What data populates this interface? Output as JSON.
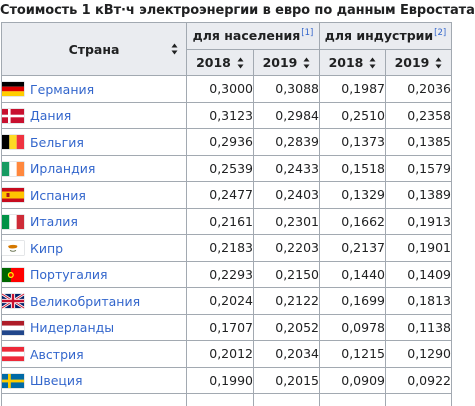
{
  "caption": "Стоимость 1 кВт·ч электроэнергии в евро по данным Евростата",
  "headers": {
    "country": "Страна",
    "households": "для населения",
    "households_ref": "[1]",
    "industry": "для индустрии",
    "industry_ref": "[2]",
    "years": [
      "2018",
      "2019",
      "2018",
      "2019"
    ]
  },
  "rows": [
    {
      "country": "Германия",
      "flag": "germany",
      "values": [
        "0,3000",
        "0,3088",
        "0,1987",
        "0,2036"
      ]
    },
    {
      "country": "Дания",
      "flag": "denmark",
      "values": [
        "0,3123",
        "0,2984",
        "0,2510",
        "0,2358"
      ]
    },
    {
      "country": "Бельгия",
      "flag": "belgium",
      "values": [
        "0,2936",
        "0,2839",
        "0,1373",
        "0,1385"
      ]
    },
    {
      "country": "Ирландия",
      "flag": "ireland",
      "values": [
        "0,2539",
        "0,2433",
        "0,1518",
        "0,1579"
      ]
    },
    {
      "country": "Испания",
      "flag": "spain",
      "values": [
        "0,2477",
        "0,2403",
        "0,1329",
        "0,1389"
      ]
    },
    {
      "country": "Италия",
      "flag": "italy",
      "values": [
        "0,2161",
        "0,2301",
        "0,1662",
        "0,1913"
      ]
    },
    {
      "country": "Кипр",
      "flag": "cyprus",
      "values": [
        "0,2183",
        "0,2203",
        "0,2137",
        "0,1901"
      ]
    },
    {
      "country": "Португалия",
      "flag": "portugal",
      "values": [
        "0,2293",
        "0,2150",
        "0,1440",
        "0,1409"
      ]
    },
    {
      "country": "Великобритания",
      "flag": "united-kingdom",
      "values": [
        "0,2024",
        "0,2122",
        "0,1699",
        "0,1813"
      ]
    },
    {
      "country": "Нидерланды",
      "flag": "netherlands",
      "values": [
        "0,1707",
        "0,2052",
        "0,0978",
        "0,1138"
      ]
    },
    {
      "country": "Австрия",
      "flag": "austria",
      "values": [
        "0,2012",
        "0,2034",
        "0,1215",
        "0,1290"
      ]
    },
    {
      "country": "Швеция",
      "flag": "sweden",
      "values": [
        "0,1990",
        "0,2015",
        "0,0909",
        "0,0922"
      ]
    }
  ],
  "colors": {
    "link": "#3366cc",
    "header_bg": "#eaecf0",
    "border": "#a2a9b1"
  }
}
